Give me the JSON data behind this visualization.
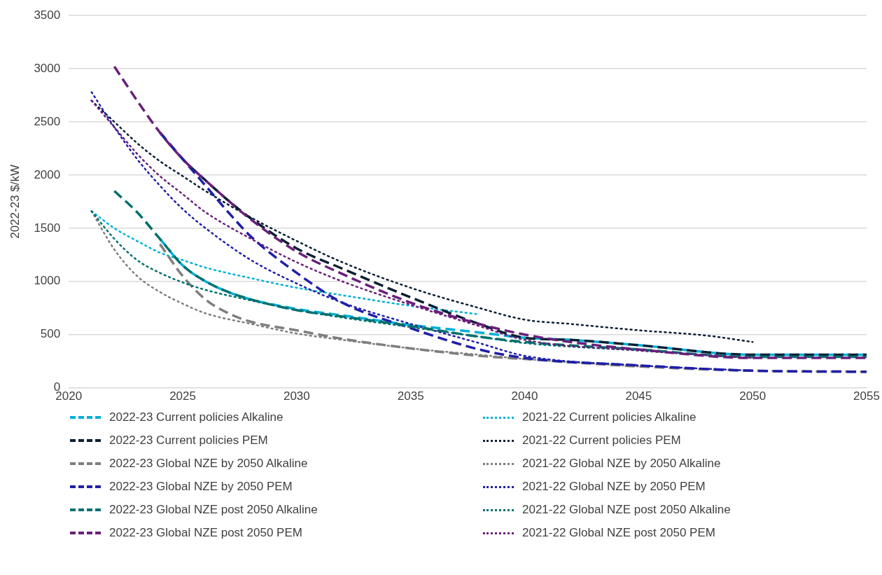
{
  "chart_data": {
    "type": "line",
    "ylabel": "2022-23 $/kW",
    "xlim": [
      2020,
      2055
    ],
    "xticks": [
      2020,
      2025,
      2030,
      2035,
      2040,
      2045,
      2050,
      2055
    ],
    "ylim": [
      0,
      3500
    ],
    "yticks": [
      0,
      500,
      1000,
      1500,
      2000,
      2500,
      3000,
      3500
    ],
    "grid": "y",
    "legend": "bottom",
    "marker": "none",
    "series": [
      {
        "name": "2022-23 Current policies Alkaline",
        "color": "#00b0d8",
        "line_style": "dashed",
        "x": [
          2024,
          2025,
          2026,
          2027,
          2028,
          2030,
          2032,
          2035,
          2038,
          2040,
          2042,
          2045,
          2050,
          2055
        ],
        "values": [
          1400,
          1150,
          1000,
          900,
          830,
          740,
          680,
          590,
          520,
          470,
          450,
          400,
          310,
          310
        ]
      },
      {
        "name": "2021-22 Current policies Alkaline",
        "color": "#00b0d8",
        "line_style": "dotted",
        "x": [
          2021,
          2022,
          2023,
          2024,
          2025,
          2026,
          2028,
          2030,
          2032,
          2035,
          2038
        ],
        "values": [
          1660,
          1500,
          1380,
          1270,
          1200,
          1130,
          1030,
          940,
          870,
          770,
          690
        ]
      },
      {
        "name": "2022-23 Current policies PEM",
        "color": "#0a1f33",
        "line_style": "dashed",
        "x": [
          2024,
          2025,
          2026,
          2027,
          2028,
          2030,
          2032,
          2035,
          2038,
          2040,
          2042,
          2045,
          2050,
          2055
        ],
        "values": [
          2400,
          2150,
          1950,
          1760,
          1590,
          1310,
          1120,
          850,
          600,
          470,
          450,
          400,
          310,
          310
        ]
      },
      {
        "name": "2021-22 Current policies PEM",
        "color": "#0a1f33",
        "line_style": "dotted",
        "x": [
          2021,
          2022,
          2023,
          2024,
          2025,
          2026,
          2028,
          2030,
          2032,
          2035,
          2038,
          2040,
          2042,
          2045,
          2048,
          2050
        ],
        "values": [
          2700,
          2500,
          2300,
          2130,
          1990,
          1850,
          1600,
          1380,
          1180,
          940,
          750,
          640,
          600,
          540,
          490,
          430
        ]
      },
      {
        "name": "2022-23 Global NZE by 2050 Alkaline",
        "color": "#7f7f7f",
        "line_style": "dashed",
        "x": [
          2024,
          2025,
          2026,
          2027,
          2028,
          2030,
          2032,
          2035,
          2038,
          2040,
          2045,
          2050,
          2055
        ],
        "values": [
          1350,
          1050,
          830,
          700,
          620,
          540,
          460,
          370,
          300,
          270,
          200,
          160,
          150
        ]
      },
      {
        "name": "2021-22 Global NZE by 2050 Alkaline",
        "color": "#7f7f7f",
        "line_style": "dotted",
        "x": [
          2021,
          2022,
          2023,
          2024,
          2025,
          2026,
          2028,
          2030,
          2032,
          2035,
          2038,
          2040,
          2045
        ],
        "values": [
          1660,
          1300,
          1050,
          900,
          790,
          700,
          600,
          510,
          450,
          370,
          310,
          270,
          200
        ]
      },
      {
        "name": "2022-23 Global NZE by 2050 PEM",
        "color": "#1f1fa8",
        "line_style": "dashed",
        "x": [
          2024,
          2025,
          2026,
          2027,
          2028,
          2030,
          2032,
          2035,
          2038,
          2040,
          2045,
          2050,
          2055
        ],
        "values": [
          2400,
          2150,
          1900,
          1650,
          1420,
          1080,
          800,
          560,
          360,
          280,
          210,
          160,
          150
        ]
      },
      {
        "name": "2021-22 Global NZE by 2050 PEM",
        "color": "#1f1fa8",
        "line_style": "dotted",
        "x": [
          2021,
          2022,
          2023,
          2024,
          2025,
          2026,
          2028,
          2030,
          2032,
          2035,
          2038,
          2040,
          2045,
          2050
        ],
        "values": [
          2780,
          2450,
          2150,
          1900,
          1680,
          1500,
          1200,
          980,
          800,
          600,
          420,
          300,
          210,
          160
        ]
      },
      {
        "name": "2022-23 Global NZE post 2050 Alkaline",
        "color": "#00706e",
        "line_style": "dashed",
        "x": [
          2022,
          2023,
          2024,
          2025,
          2026,
          2027,
          2028,
          2030,
          2032,
          2035,
          2038,
          2040,
          2045,
          2050,
          2055
        ],
        "values": [
          1850,
          1650,
          1400,
          1150,
          1000,
          900,
          830,
          730,
          670,
          580,
          480,
          430,
          360,
          290,
          290
        ]
      },
      {
        "name": "2021-22 Global NZE post 2050 Alkaline",
        "color": "#00706e",
        "line_style": "dotted",
        "x": [
          2021,
          2022,
          2023,
          2024,
          2025,
          2026,
          2028,
          2030,
          2032,
          2035,
          2038,
          2040,
          2045,
          2050
        ],
        "values": [
          1660,
          1400,
          1200,
          1080,
          990,
          920,
          820,
          730,
          660,
          570,
          480,
          420,
          350,
          280
        ]
      },
      {
        "name": "2022-23 Global NZE post 2050 PEM",
        "color": "#6a1f7a",
        "line_style": "dashed",
        "x": [
          2022,
          2023,
          2024,
          2025,
          2026,
          2027,
          2028,
          2030,
          2032,
          2035,
          2038,
          2040,
          2042,
          2045,
          2050,
          2055
        ],
        "values": [
          3020,
          2700,
          2400,
          2150,
          1950,
          1760,
          1580,
          1280,
          1070,
          800,
          600,
          500,
          430,
          360,
          280,
          280
        ]
      },
      {
        "name": "2021-22 Global NZE post 2050 PEM",
        "color": "#6a1f7a",
        "line_style": "dotted",
        "x": [
          2021,
          2022,
          2023,
          2024,
          2025,
          2026,
          2028,
          2030,
          2032,
          2035,
          2038,
          2040,
          2045,
          2050
        ],
        "values": [
          2700,
          2450,
          2200,
          1990,
          1820,
          1650,
          1400,
          1180,
          1000,
          780,
          580,
          450,
          350,
          280
        ]
      }
    ]
  }
}
